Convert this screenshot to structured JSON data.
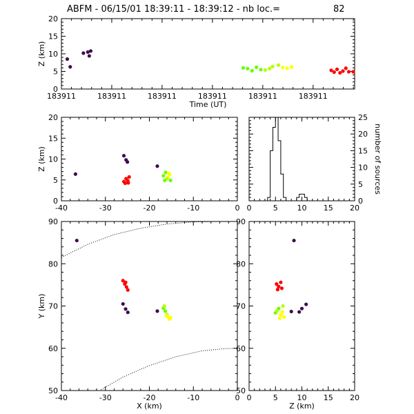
{
  "header": {
    "title": "ABFM - 06/15/01 18:39:11 - 18:39:12 - nb loc.=",
    "count": "82"
  },
  "colors": {
    "dark": "#3d0d4f",
    "red": "#ff0000",
    "green": "#66ff00",
    "yellow": "#ffff00",
    "lime": "#b6ff00"
  },
  "chart_data": [
    {
      "id": "time-height",
      "type": "scatter",
      "xlabel": "Time (UT)",
      "ylabel": "Z (km)",
      "xlim": [
        0,
        1
      ],
      "ylim": [
        0,
        20
      ],
      "xtick_labels": [
        "183911",
        "183911",
        "183911",
        "183911",
        "183911",
        "183911"
      ],
      "yticks": [
        0,
        5,
        10,
        15,
        20
      ],
      "points": [
        {
          "x": 0.02,
          "y": 8.5,
          "c": "dark"
        },
        {
          "x": 0.03,
          "y": 6.3,
          "c": "dark"
        },
        {
          "x": 0.075,
          "y": 10.2,
          "c": "dark"
        },
        {
          "x": 0.09,
          "y": 10.5,
          "c": "dark"
        },
        {
          "x": 0.095,
          "y": 9.4,
          "c": "dark"
        },
        {
          "x": 0.1,
          "y": 10.8,
          "c": "dark"
        },
        {
          "x": 0.62,
          "y": 6.0,
          "c": "green"
        },
        {
          "x": 0.635,
          "y": 5.8,
          "c": "green"
        },
        {
          "x": 0.65,
          "y": 5.2,
          "c": "green"
        },
        {
          "x": 0.665,
          "y": 6.2,
          "c": "green"
        },
        {
          "x": 0.68,
          "y": 5.5,
          "c": "green"
        },
        {
          "x": 0.695,
          "y": 5.4,
          "c": "lime"
        },
        {
          "x": 0.71,
          "y": 5.8,
          "c": "lime"
        },
        {
          "x": 0.72,
          "y": 6.4,
          "c": "lime"
        },
        {
          "x": 0.74,
          "y": 6.8,
          "c": "lime"
        },
        {
          "x": 0.755,
          "y": 6.1,
          "c": "yellow"
        },
        {
          "x": 0.77,
          "y": 5.9,
          "c": "yellow"
        },
        {
          "x": 0.785,
          "y": 6.3,
          "c": "yellow"
        },
        {
          "x": 0.92,
          "y": 5.3,
          "c": "red"
        },
        {
          "x": 0.93,
          "y": 4.8,
          "c": "red"
        },
        {
          "x": 0.94,
          "y": 5.6,
          "c": "red"
        },
        {
          "x": 0.95,
          "y": 4.6,
          "c": "red"
        },
        {
          "x": 0.96,
          "y": 5.1,
          "c": "red"
        },
        {
          "x": 0.97,
          "y": 5.9,
          "c": "red"
        },
        {
          "x": 0.98,
          "y": 4.9,
          "c": "red"
        },
        {
          "x": 0.995,
          "y": 4.9,
          "c": "red"
        }
      ]
    },
    {
      "id": "x-z",
      "type": "scatter",
      "xlabel": "",
      "ylabel": "Z (km)",
      "xlim": [
        -40,
        0
      ],
      "ylim": [
        0,
        20
      ],
      "xticks": [
        -40,
        -30,
        -20,
        -10,
        0
      ],
      "yticks": [
        0,
        5,
        10,
        15,
        20
      ],
      "points": [
        {
          "x": -36.8,
          "y": 6.4,
          "c": "dark"
        },
        {
          "x": -25.8,
          "y": 10.8,
          "c": "dark"
        },
        {
          "x": -25.3,
          "y": 9.8,
          "c": "dark"
        },
        {
          "x": -25.0,
          "y": 9.3,
          "c": "dark"
        },
        {
          "x": -18.2,
          "y": 8.3,
          "c": "dark"
        },
        {
          "x": -25.8,
          "y": 4.6,
          "c": "red"
        },
        {
          "x": -25.3,
          "y": 5.3,
          "c": "red"
        },
        {
          "x": -24.9,
          "y": 4.8,
          "c": "red"
        },
        {
          "x": -25.5,
          "y": 4.2,
          "c": "red"
        },
        {
          "x": -24.6,
          "y": 5.7,
          "c": "red"
        },
        {
          "x": -24.8,
          "y": 4.3,
          "c": "red"
        },
        {
          "x": -16.8,
          "y": 6.0,
          "c": "green"
        },
        {
          "x": -16.5,
          "y": 4.9,
          "c": "green"
        },
        {
          "x": -16.3,
          "y": 6.8,
          "c": "green"
        },
        {
          "x": -15.8,
          "y": 5.6,
          "c": "yellow"
        },
        {
          "x": -15.4,
          "y": 6.3,
          "c": "yellow"
        },
        {
          "x": -15.2,
          "y": 4.9,
          "c": "green"
        },
        {
          "x": -16.0,
          "y": 5.3,
          "c": "lime"
        },
        {
          "x": -15.6,
          "y": 6.6,
          "c": "yellow"
        }
      ]
    },
    {
      "id": "histogram",
      "type": "line",
      "xlabel": "",
      "ylabel": "number of sources",
      "xlim": [
        0,
        20
      ],
      "ylim": [
        0,
        25
      ],
      "xticks": [
        0,
        5,
        10,
        15,
        20
      ],
      "yticks": [
        0,
        5,
        10,
        15,
        20,
        25
      ],
      "step_x": [
        3.5,
        4.0,
        4.5,
        5.0,
        5.5,
        6.0,
        6.5,
        7.0,
        9.0,
        9.5,
        10.0,
        10.5,
        11.0
      ],
      "step_y": [
        1,
        15,
        22,
        25,
        18,
        8,
        1,
        0,
        1,
        2,
        2,
        1,
        0
      ]
    },
    {
      "id": "x-y",
      "type": "scatter",
      "xlabel": "X (km)",
      "ylabel": "Y (km)",
      "xlim": [
        -40,
        0
      ],
      "ylim": [
        50,
        90
      ],
      "xticks": [
        -40,
        -30,
        -20,
        -10,
        0
      ],
      "yticks": [
        50,
        60,
        70,
        80,
        90
      ],
      "points": [
        {
          "x": -36.5,
          "y": 85.5,
          "c": "dark"
        },
        {
          "x": -26.0,
          "y": 70.5,
          "c": "dark"
        },
        {
          "x": -25.4,
          "y": 69.3,
          "c": "dark"
        },
        {
          "x": -24.9,
          "y": 68.5,
          "c": "dark"
        },
        {
          "x": -18.2,
          "y": 68.8,
          "c": "dark"
        },
        {
          "x": -26.0,
          "y": 76.0,
          "c": "red"
        },
        {
          "x": -25.6,
          "y": 75.2,
          "c": "red"
        },
        {
          "x": -25.2,
          "y": 74.5,
          "c": "red"
        },
        {
          "x": -24.9,
          "y": 73.8,
          "c": "red"
        },
        {
          "x": -25.4,
          "y": 75.6,
          "c": "red"
        },
        {
          "x": -16.8,
          "y": 69.5,
          "c": "green"
        },
        {
          "x": -16.4,
          "y": 68.8,
          "c": "green"
        },
        {
          "x": -16.6,
          "y": 70.0,
          "c": "lime"
        },
        {
          "x": -16.0,
          "y": 68.0,
          "c": "lime"
        },
        {
          "x": -15.7,
          "y": 67.4,
          "c": "yellow"
        },
        {
          "x": -15.4,
          "y": 66.9,
          "c": "yellow"
        },
        {
          "x": -16.1,
          "y": 67.7,
          "c": "yellow"
        },
        {
          "x": -15.2,
          "y": 67.2,
          "c": "yellow"
        }
      ],
      "curves": [
        {
          "x": [
            -40,
            -34,
            -28,
            -22,
            -16,
            -10,
            -5,
            0
          ],
          "y": [
            81.5,
            84.6,
            86.9,
            88.4,
            89.4,
            89.9,
            90.0,
            90.0
          ]
        },
        {
          "x": [
            -31,
            -26,
            -20,
            -14,
            -8,
            -3,
            0
          ],
          "y": [
            50.2,
            53.2,
            55.9,
            58.0,
            59.4,
            59.9,
            60.0
          ]
        }
      ]
    },
    {
      "id": "z-y",
      "type": "scatter",
      "xlabel": "Z (km)",
      "ylabel": "",
      "xlim": [
        0,
        20
      ],
      "ylim": [
        50,
        90
      ],
      "xticks": [
        0,
        5,
        10,
        15,
        20
      ],
      "yticks": [
        50,
        60,
        70,
        80,
        90
      ],
      "points": [
        {
          "x": 8.5,
          "y": 85.5,
          "c": "dark"
        },
        {
          "x": 8.0,
          "y": 68.7,
          "c": "dark"
        },
        {
          "x": 9.5,
          "y": 68.6,
          "c": "dark"
        },
        {
          "x": 10.0,
          "y": 69.4,
          "c": "dark"
        },
        {
          "x": 10.8,
          "y": 70.4,
          "c": "dark"
        },
        {
          "x": 5.2,
          "y": 75.2,
          "c": "red"
        },
        {
          "x": 5.6,
          "y": 74.6,
          "c": "red"
        },
        {
          "x": 6.0,
          "y": 75.6,
          "c": "red"
        },
        {
          "x": 5.4,
          "y": 73.9,
          "c": "red"
        },
        {
          "x": 6.2,
          "y": 74.2,
          "c": "red"
        },
        {
          "x": 5.0,
          "y": 68.4,
          "c": "green"
        },
        {
          "x": 5.6,
          "y": 69.4,
          "c": "green"
        },
        {
          "x": 6.4,
          "y": 70.0,
          "c": "lime"
        },
        {
          "x": 6.0,
          "y": 67.9,
          "c": "yellow"
        },
        {
          "x": 5.8,
          "y": 67.1,
          "c": "yellow"
        },
        {
          "x": 6.6,
          "y": 67.4,
          "c": "yellow"
        },
        {
          "x": 5.3,
          "y": 68.9,
          "c": "lime"
        },
        {
          "x": 6.3,
          "y": 68.6,
          "c": "yellow"
        }
      ]
    }
  ]
}
